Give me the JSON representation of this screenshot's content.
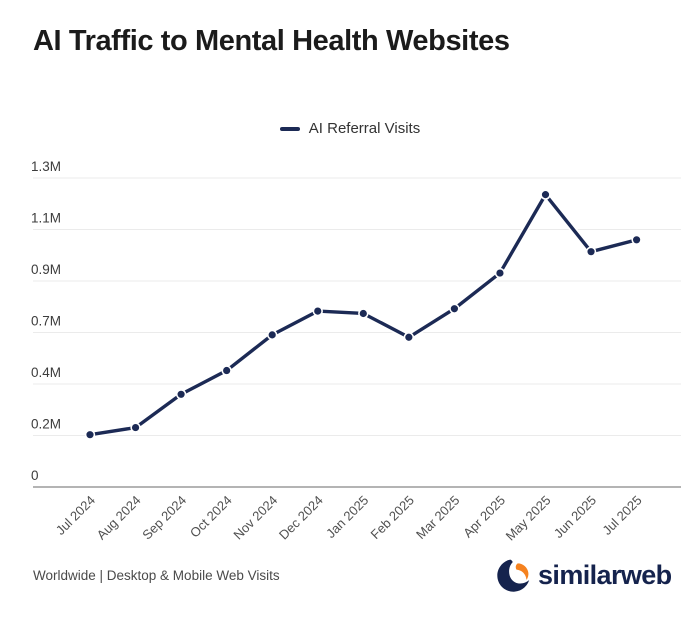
{
  "title": "AI Traffic to Mental Health Websites",
  "legend": {
    "label": "AI Referral Visits",
    "marker_color": "#1c2a55"
  },
  "footer": {
    "note": "Worldwide | Desktop & Mobile Web Visits",
    "brand_name": "similarweb"
  },
  "colors": {
    "line": "#1c2a55",
    "grid": "#ebebeb",
    "axis": "#9b9b9b",
    "x_tick_text": "#505050",
    "y_tick_text": "#3c3c3c",
    "brand_navy": "#15234d",
    "brand_orange": "#f5821f"
  },
  "chart_data": {
    "type": "line",
    "title": "AI Traffic to Mental Health Websites",
    "categories": [
      "Jul 2024",
      "Aug 2024",
      "Sep 2024",
      "Oct 2024",
      "Nov 2024",
      "Dec 2024",
      "Jan 2025",
      "Feb 2025",
      "Mar 2025",
      "Apr 2025",
      "May 2025",
      "Jun 2025",
      "Jul 2025"
    ],
    "series": [
      {
        "name": "AI Referral Visits",
        "values": [
          0.22,
          0.25,
          0.39,
          0.49,
          0.64,
          0.74,
          0.73,
          0.63,
          0.75,
          0.9,
          1.23,
          0.99,
          1.04
        ]
      }
    ],
    "unit": "M visits (millions)",
    "xlabel": "",
    "ylabel": "",
    "ylim": [
      0,
      1.3
    ],
    "y_tick_values": [
      0,
      0.2167,
      0.4333,
      0.65,
      0.8667,
      1.0833,
      1.3
    ],
    "y_tick_labels": [
      "0",
      "0.2M",
      "0.4M",
      "0.7M",
      "0.9M",
      "1.1M",
      "1.3M"
    ],
    "grid": true,
    "legend_position": "top-center",
    "note": "Worldwide | Desktop & Mobile Web Visits"
  }
}
